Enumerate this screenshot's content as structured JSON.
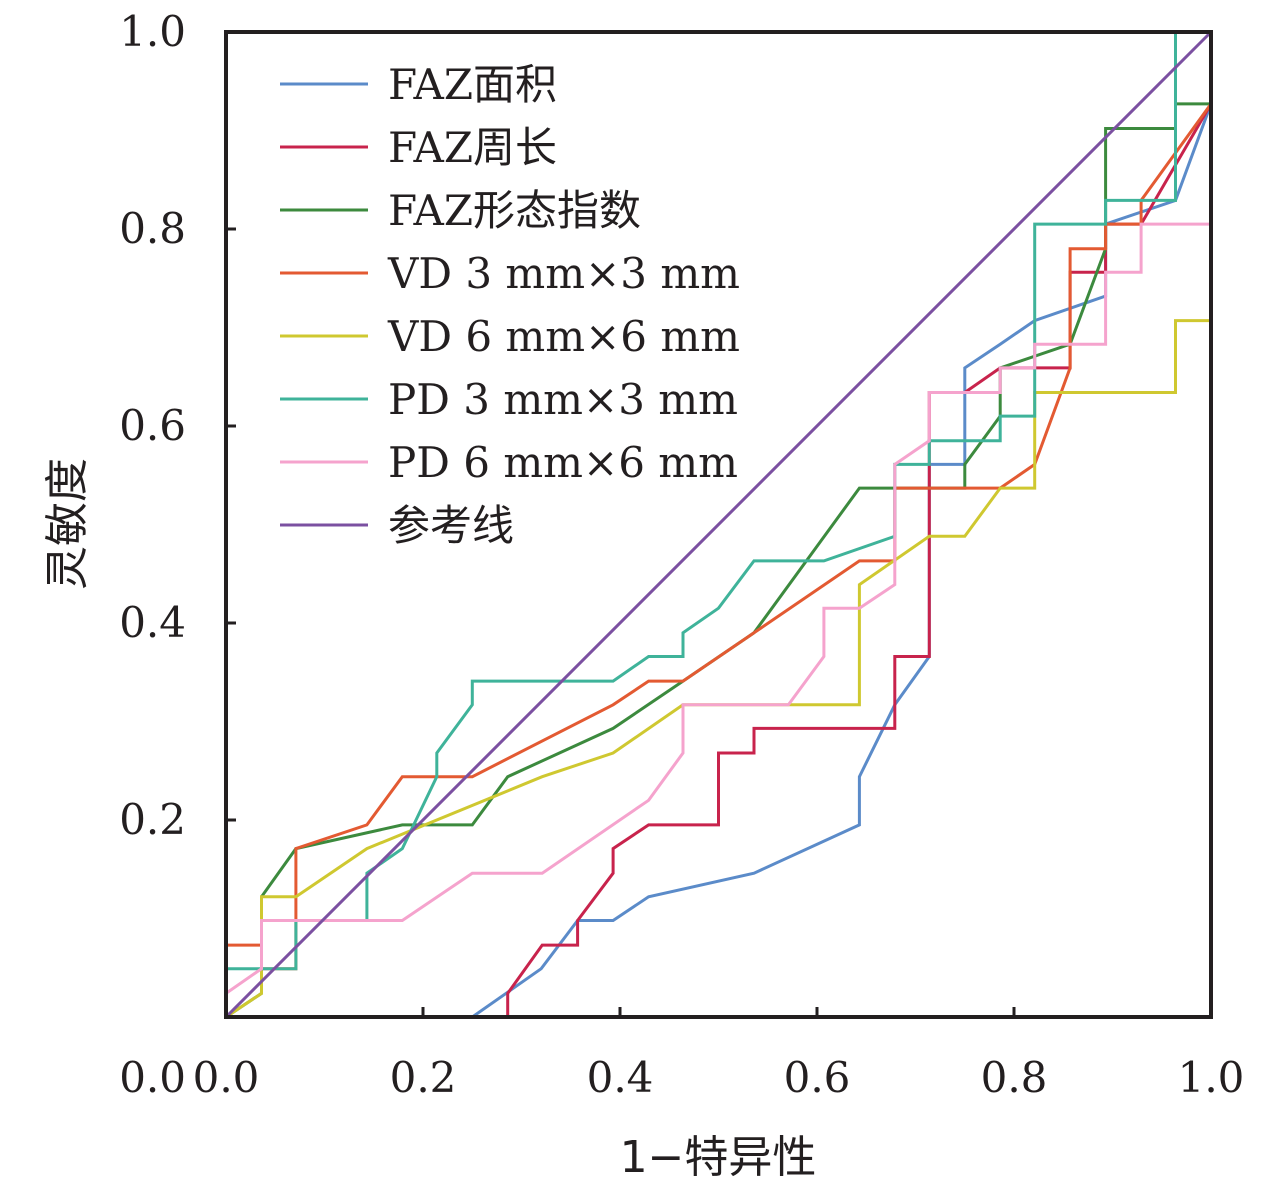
{
  "chart_data": {
    "type": "line",
    "title": "",
    "xlabel": "1−特异性",
    "ylabel": "灵敏度",
    "xlim": [
      0,
      1
    ],
    "ylim": [
      0,
      1
    ],
    "xticks": [
      "0.0",
      "0.2",
      "0.4",
      "0.6",
      "0.8",
      "1.0"
    ],
    "yticks": [
      "0.0",
      "0.2",
      "0.4",
      "0.6",
      "0.8",
      "1.0"
    ],
    "grid": false,
    "legend_position": "top-left",
    "series": [
      {
        "name": "FAZ面积",
        "color": "#5b8bc9",
        "x": [
          0.25,
          0.32,
          0.357,
          0.393,
          0.429,
          0.536,
          0.643,
          0.643,
          0.679,
          0.714,
          0.714,
          0.75,
          0.75,
          0.786,
          0.821,
          0.893,
          0.893,
          0.964,
          1.0
        ],
        "y": [
          0.0,
          0.049,
          0.098,
          0.098,
          0.122,
          0.146,
          0.195,
          0.244,
          0.317,
          0.366,
          0.561,
          0.561,
          0.659,
          0.683,
          0.707,
          0.732,
          0.805,
          0.829,
          0.927
        ]
      },
      {
        "name": "FAZ周长",
        "color": "#c8234c",
        "x": [
          0.0,
          0.286,
          0.286,
          0.321,
          0.357,
          0.357,
          0.393,
          0.393,
          0.429,
          0.5,
          0.5,
          0.536,
          0.536,
          0.679,
          0.679,
          0.714,
          0.714,
          0.75,
          0.786,
          0.857,
          0.857,
          0.893,
          0.893,
          0.929,
          1.0
        ],
        "y": [
          0.0,
          0.0,
          0.024,
          0.073,
          0.073,
          0.098,
          0.146,
          0.171,
          0.195,
          0.195,
          0.268,
          0.268,
          0.293,
          0.293,
          0.366,
          0.366,
          0.634,
          0.634,
          0.659,
          0.659,
          0.756,
          0.756,
          0.805,
          0.805,
          0.927
        ]
      },
      {
        "name": "FAZ形态指数",
        "color": "#3c8a3e",
        "x": [
          0.0,
          0.036,
          0.036,
          0.071,
          0.179,
          0.25,
          0.286,
          0.393,
          0.464,
          0.536,
          0.643,
          0.75,
          0.75,
          0.786,
          0.786,
          0.857,
          0.893,
          0.893,
          0.964,
          0.964,
          1.0
        ],
        "y": [
          0.0,
          0.024,
          0.122,
          0.171,
          0.195,
          0.195,
          0.244,
          0.293,
          0.341,
          0.39,
          0.537,
          0.537,
          0.561,
          0.61,
          0.659,
          0.683,
          0.78,
          0.902,
          0.902,
          0.927,
          0.927
        ]
      },
      {
        "name": "VD 3 mm×3 mm",
        "color": "#e35a32",
        "x": [
          0.0,
          0.036,
          0.036,
          0.071,
          0.071,
          0.143,
          0.179,
          0.25,
          0.393,
          0.429,
          0.464,
          0.536,
          0.643,
          0.679,
          0.679,
          0.786,
          0.821,
          0.857,
          0.857,
          0.893,
          0.893,
          0.929,
          0.929,
          1.0
        ],
        "y": [
          0.073,
          0.073,
          0.049,
          0.049,
          0.171,
          0.195,
          0.244,
          0.244,
          0.317,
          0.341,
          0.341,
          0.39,
          0.463,
          0.463,
          0.537,
          0.537,
          0.561,
          0.659,
          0.78,
          0.78,
          0.805,
          0.805,
          0.829,
          0.927
        ]
      },
      {
        "name": "VD 6 mm×6 mm",
        "color": "#cfc830",
        "x": [
          0.0,
          0.036,
          0.036,
          0.071,
          0.143,
          0.321,
          0.393,
          0.464,
          0.643,
          0.643,
          0.714,
          0.75,
          0.786,
          0.821,
          0.821,
          0.964,
          0.964,
          1.0,
          1.0
        ],
        "y": [
          0.0,
          0.024,
          0.122,
          0.122,
          0.171,
          0.244,
          0.268,
          0.317,
          0.317,
          0.439,
          0.488,
          0.488,
          0.537,
          0.537,
          0.634,
          0.634,
          0.707,
          0.707,
          1.0
        ]
      },
      {
        "name": "PD 3 mm×3 mm",
        "color": "#3fb39a",
        "x": [
          0.0,
          0.0,
          0.071,
          0.071,
          0.143,
          0.143,
          0.179,
          0.214,
          0.214,
          0.25,
          0.25,
          0.393,
          0.429,
          0.464,
          0.464,
          0.5,
          0.536,
          0.607,
          0.679,
          0.679,
          0.714,
          0.714,
          0.75,
          0.786,
          0.786,
          0.821,
          0.821,
          0.893,
          0.893,
          0.964,
          0.964,
          1.0
        ],
        "y": [
          0.0,
          0.049,
          0.049,
          0.098,
          0.098,
          0.146,
          0.171,
          0.244,
          0.268,
          0.317,
          0.341,
          0.341,
          0.366,
          0.366,
          0.39,
          0.415,
          0.463,
          0.463,
          0.488,
          0.561,
          0.561,
          0.585,
          0.585,
          0.585,
          0.61,
          0.61,
          0.805,
          0.805,
          0.829,
          0.829,
          1.0,
          1.0
        ]
      },
      {
        "name": "PD 6 mm×6 mm",
        "color": "#f5a3cd",
        "x": [
          0.0,
          0.036,
          0.036,
          0.179,
          0.25,
          0.321,
          0.429,
          0.464,
          0.464,
          0.571,
          0.607,
          0.607,
          0.643,
          0.679,
          0.679,
          0.714,
          0.714,
          0.786,
          0.786,
          0.821,
          0.821,
          0.893,
          0.893,
          0.929,
          0.929,
          1.0,
          1.0
        ],
        "y": [
          0.024,
          0.049,
          0.098,
          0.098,
          0.146,
          0.146,
          0.22,
          0.268,
          0.317,
          0.317,
          0.366,
          0.415,
          0.415,
          0.439,
          0.561,
          0.585,
          0.634,
          0.634,
          0.659,
          0.659,
          0.683,
          0.683,
          0.756,
          0.756,
          0.805,
          0.805,
          1.0
        ]
      },
      {
        "name": "参考线",
        "color": "#7b50a1",
        "x": [
          0.0,
          1.0
        ],
        "y": [
          0.0,
          1.0
        ]
      }
    ]
  }
}
